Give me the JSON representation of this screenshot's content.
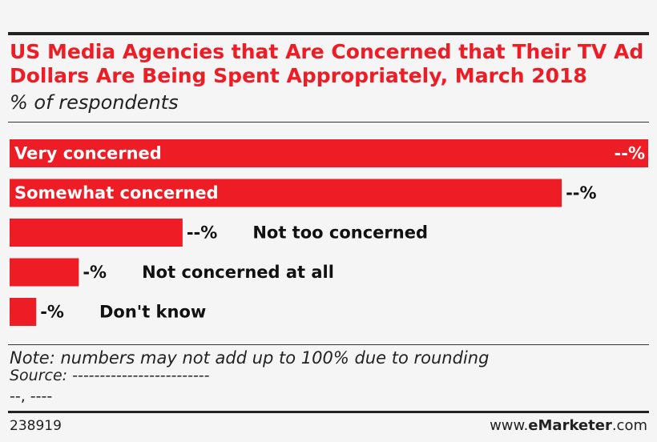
{
  "chart_data": {
    "type": "bar",
    "orientation": "horizontal",
    "title": "US Media Agencies that Are Concerned that Their TV Ad Dollars Are Being Spent Appropriately, March 2018",
    "subtitle": "% of respondents",
    "categories": [
      "Very concerned",
      "Somewhat concerned",
      "Not too concerned",
      "Not concerned at all",
      "Don't know"
    ],
    "values": [
      48,
      41.5,
      13,
      5.2,
      2
    ],
    "value_labels": [
      "--%",
      "--%",
      "--%",
      "-%",
      "-%"
    ],
    "label_inside": [
      true,
      true,
      false,
      false,
      false
    ],
    "xlim": [
      0,
      48
    ],
    "color": "#ee1c24"
  },
  "footer": {
    "note": "Note: numbers may not add up to 100% due to rounding",
    "source": "Source: -------------------------",
    "source_detail": "--, ----",
    "chart_id": "238919",
    "brand_prefix": "www.",
    "brand_name": "eMarketer",
    "brand_suffix": ".com"
  }
}
